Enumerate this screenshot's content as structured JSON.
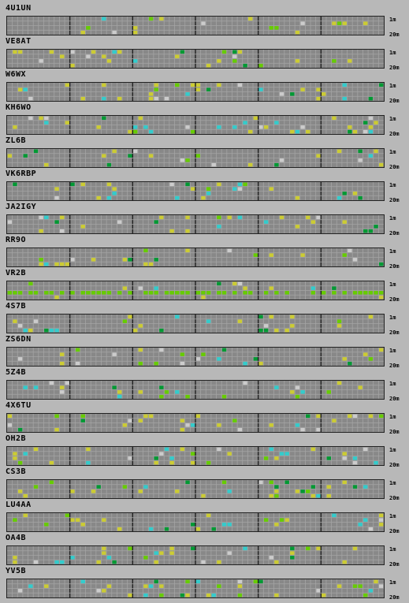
{
  "bands": {
    "top": "1m",
    "bottom": "20m"
  },
  "colors": {
    "background": "#b8b8b8",
    "grid_fill": "#888888",
    "grid_line": "#a4a4a4",
    "grid_divider": "#202020",
    "signal_green": "#66cc00",
    "signal_yellow": "#cccc33",
    "signal_cyan": "#33cccc",
    "signal_gray": "#cccccc",
    "signal_darkgreen": "#009933"
  },
  "stations": [
    {
      "callsign": "4U1UN"
    },
    {
      "callsign": "VE8AT"
    },
    {
      "callsign": "W6WX"
    },
    {
      "callsign": "KH6WO"
    },
    {
      "callsign": "ZL6B"
    },
    {
      "callsign": "VK6RBP"
    },
    {
      "callsign": "JA2IGY"
    },
    {
      "callsign": "RR9O"
    },
    {
      "callsign": "VR2B"
    },
    {
      "callsign": "4S7B"
    },
    {
      "callsign": "ZS6DN"
    },
    {
      "callsign": "5Z4B"
    },
    {
      "callsign": "4X6TU"
    },
    {
      "callsign": "OH2B"
    },
    {
      "callsign": "CS3B"
    },
    {
      "callsign": "LU4AA"
    },
    {
      "callsign": "OA4B"
    },
    {
      "callsign": "YV5B"
    }
  ]
}
